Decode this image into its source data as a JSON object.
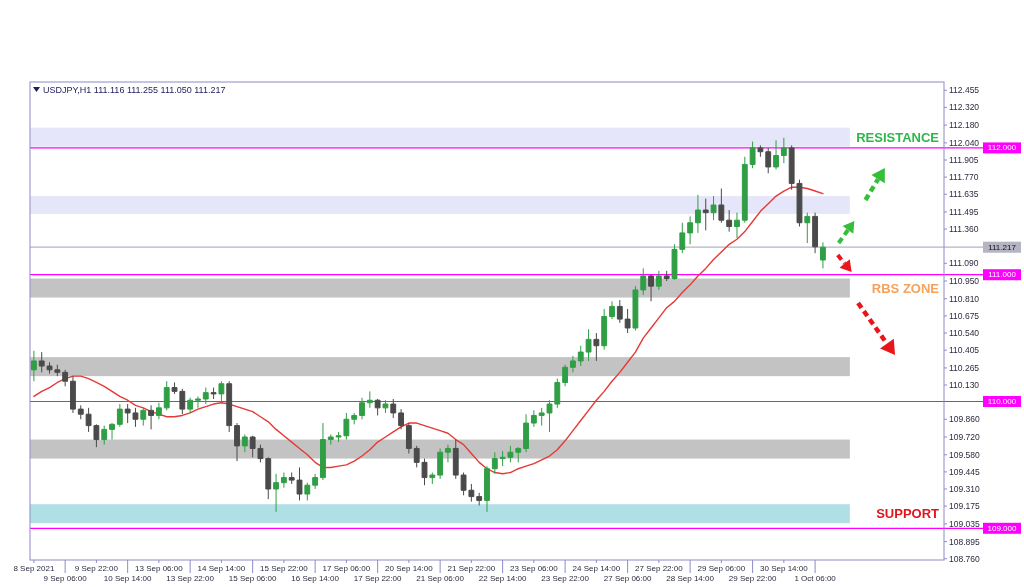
{
  "chart_data": {
    "type": "candlestick",
    "title": "USDJPY,H1 111.116 111.255 111.050 111.217",
    "categories": [
      "8 Sep 2021",
      null,
      null,
      null,
      "9 Sep 06:00",
      null,
      null,
      null,
      "9 Sep 22:00",
      null,
      null,
      null,
      "10 Sep 14:00",
      null,
      null,
      null,
      "13 Sep 06:00",
      null,
      null,
      null,
      "13 Sep 22:00",
      null,
      null,
      null,
      "14 Sep 14:00",
      null,
      null,
      null,
      "15 Sep 06:00",
      null,
      null,
      null,
      "15 Sep 22:00",
      null,
      null,
      null,
      "16 Sep 14:00",
      null,
      null,
      null,
      "17 Sep 06:00",
      null,
      null,
      null,
      "17 Sep 22:00",
      null,
      null,
      null,
      "20 Sep 14:00",
      null,
      null,
      null,
      "21 Sep 06:00",
      null,
      null,
      null,
      "21 Sep 22:00",
      null,
      null,
      null,
      "22 Sep 14:00",
      null,
      null,
      null,
      "23 Sep 06:00",
      null,
      null,
      null,
      "23 Sep 22:00",
      null,
      null,
      null,
      "24 Sep 14:00",
      null,
      null,
      null,
      "27 Sep 06:00",
      null,
      null,
      null,
      "27 Sep 22:00",
      null,
      null,
      null,
      "28 Sep 14:00",
      null,
      null,
      null,
      "29 Sep 06:00",
      null,
      null,
      null,
      "29 Sep 22:00",
      null,
      null,
      null,
      "30 Sep 14:00",
      null,
      null,
      null,
      "1 Oct 06:00",
      null,
      null,
      null,
      null,
      null,
      null,
      null,
      null,
      null,
      null,
      null,
      null,
      null,
      null,
      null,
      null
    ],
    "series": [
      {
        "type": "candlestick",
        "ohlc": [
          [
            110.25,
            110.4,
            110.16,
            110.32
          ],
          [
            110.32,
            110.39,
            110.23,
            110.28
          ],
          [
            110.28,
            110.31,
            110.22,
            110.25
          ],
          [
            110.25,
            110.29,
            110.2,
            110.23
          ],
          [
            110.23,
            110.25,
            110.12,
            110.16
          ],
          [
            110.16,
            110.2,
            109.91,
            109.94
          ],
          [
            109.94,
            109.97,
            109.86,
            109.9
          ],
          [
            109.9,
            109.95,
            109.76,
            109.81
          ],
          [
            109.81,
            109.82,
            109.64,
            109.7
          ],
          [
            109.7,
            109.81,
            109.66,
            109.78
          ],
          [
            109.78,
            109.83,
            109.7,
            109.82
          ],
          [
            109.82,
            109.98,
            109.8,
            109.94
          ],
          [
            109.94,
            109.98,
            109.83,
            109.91
          ],
          [
            109.91,
            109.95,
            109.8,
            109.86
          ],
          [
            109.86,
            109.95,
            109.81,
            109.93
          ],
          [
            109.93,
            109.97,
            109.78,
            109.89
          ],
          [
            109.89,
            109.99,
            109.86,
            109.95
          ],
          [
            109.95,
            110.16,
            109.93,
            110.11
          ],
          [
            110.11,
            110.15,
            110.06,
            110.08
          ],
          [
            110.08,
            110.1,
            109.9,
            109.94
          ],
          [
            109.94,
            110.03,
            109.91,
            110.01
          ],
          [
            110.01,
            110.04,
            109.95,
            110.02
          ],
          [
            110.02,
            110.11,
            109.98,
            110.07
          ],
          [
            110.07,
            110.11,
            110.02,
            110.06
          ],
          [
            110.06,
            110.16,
            109.99,
            110.14
          ],
          [
            110.14,
            110.16,
            109.76,
            109.81
          ],
          [
            109.81,
            109.83,
            109.53,
            109.65
          ],
          [
            109.65,
            109.74,
            109.6,
            109.72
          ],
          [
            109.72,
            109.73,
            109.56,
            109.63
          ],
          [
            109.63,
            109.66,
            109.52,
            109.55
          ],
          [
            109.55,
            109.56,
            109.23,
            109.31
          ],
          [
            109.31,
            109.43,
            109.13,
            109.36
          ],
          [
            109.36,
            109.44,
            109.32,
            109.4
          ],
          [
            109.4,
            109.44,
            109.35,
            109.38
          ],
          [
            109.38,
            109.48,
            109.22,
            109.27
          ],
          [
            109.27,
            109.36,
            109.22,
            109.34
          ],
          [
            109.34,
            109.43,
            109.31,
            109.4
          ],
          [
            109.4,
            109.83,
            109.38,
            109.7
          ],
          [
            109.7,
            109.74,
            109.66,
            109.72
          ],
          [
            109.72,
            109.76,
            109.68,
            109.73
          ],
          [
            109.73,
            109.91,
            109.7,
            109.86
          ],
          [
            109.86,
            109.91,
            109.82,
            109.89
          ],
          [
            109.89,
            110.03,
            109.86,
            109.99
          ],
          [
            109.99,
            110.08,
            109.95,
            110.01
          ],
          [
            110.01,
            110.02,
            109.89,
            109.95
          ],
          [
            109.95,
            110.01,
            109.91,
            109.98
          ],
          [
            109.98,
            110.02,
            109.87,
            109.91
          ],
          [
            109.91,
            109.94,
            109.78,
            109.81
          ],
          [
            109.81,
            109.83,
            109.59,
            109.63
          ],
          [
            109.63,
            109.65,
            109.48,
            109.52
          ],
          [
            109.52,
            109.55,
            109.34,
            109.4
          ],
          [
            109.4,
            109.44,
            109.35,
            109.42
          ],
          [
            109.42,
            109.63,
            109.39,
            109.6
          ],
          [
            109.6,
            109.66,
            109.52,
            109.63
          ],
          [
            109.63,
            109.7,
            109.39,
            109.42
          ],
          [
            109.42,
            109.44,
            109.26,
            109.3
          ],
          [
            109.3,
            109.35,
            109.21,
            109.25
          ],
          [
            109.25,
            109.28,
            109.18,
            109.22
          ],
          [
            109.22,
            109.49,
            109.13,
            109.47
          ],
          [
            109.47,
            109.6,
            109.43,
            109.55
          ],
          [
            109.55,
            109.61,
            109.49,
            109.56
          ],
          [
            109.56,
            109.65,
            109.52,
            109.6
          ],
          [
            109.6,
            109.64,
            109.52,
            109.63
          ],
          [
            109.63,
            109.9,
            109.6,
            109.83
          ],
          [
            109.83,
            109.93,
            109.8,
            109.89
          ],
          [
            109.89,
            109.95,
            109.81,
            109.91
          ],
          [
            109.91,
            110.01,
            109.76,
            109.98
          ],
          [
            109.98,
            110.18,
            109.95,
            110.15
          ],
          [
            110.15,
            110.29,
            110.12,
            110.27
          ],
          [
            110.27,
            110.36,
            110.23,
            110.32
          ],
          [
            110.32,
            110.44,
            110.28,
            110.39
          ],
          [
            110.39,
            110.57,
            110.32,
            110.49
          ],
          [
            110.49,
            110.54,
            110.32,
            110.44
          ],
          [
            110.44,
            110.73,
            110.41,
            110.67
          ],
          [
            110.67,
            110.79,
            110.65,
            110.75
          ],
          [
            110.75,
            110.8,
            110.62,
            110.65
          ],
          [
            110.65,
            110.73,
            110.54,
            110.58
          ],
          [
            110.58,
            110.91,
            110.56,
            110.88
          ],
          [
            110.88,
            111.05,
            110.84,
            110.99
          ],
          [
            110.99,
            111.0,
            110.79,
            110.91
          ],
          [
            110.91,
            111.03,
            110.88,
            110.99
          ],
          [
            110.99,
            111.03,
            110.95,
            110.97
          ],
          [
            110.97,
            111.24,
            110.96,
            111.2
          ],
          [
            111.2,
            111.41,
            111.17,
            111.33
          ],
          [
            111.33,
            111.46,
            111.24,
            111.41
          ],
          [
            111.41,
            111.63,
            111.33,
            111.51
          ],
          [
            111.51,
            111.6,
            111.35,
            111.49
          ],
          [
            111.49,
            111.62,
            111.43,
            111.55
          ],
          [
            111.55,
            111.68,
            111.41,
            111.43
          ],
          [
            111.43,
            111.51,
            111.34,
            111.38
          ],
          [
            111.38,
            111.49,
            111.29,
            111.43
          ],
          [
            111.43,
            111.93,
            111.41,
            111.87
          ],
          [
            111.87,
            112.05,
            111.84,
            112.0
          ],
          [
            112.0,
            112.02,
            111.93,
            111.97
          ],
          [
            111.97,
            112.0,
            111.8,
            111.85
          ],
          [
            111.85,
            112.06,
            111.83,
            111.94
          ],
          [
            111.94,
            112.08,
            111.88,
            112.0
          ],
          [
            112.0,
            112.02,
            111.67,
            111.72
          ],
          [
            111.72,
            111.75,
            111.38,
            111.41
          ],
          [
            111.41,
            111.49,
            111.25,
            111.46
          ],
          [
            111.46,
            111.49,
            111.17,
            111.22
          ],
          [
            111.116,
            111.255,
            111.05,
            111.217
          ],
          null,
          null,
          null,
          null,
          null,
          null,
          null,
          null,
          null,
          null,
          null,
          null,
          null,
          null,
          null
        ],
        "colors": [
          "#2f9e44",
          "#4a4a4a",
          "#4a4a4a",
          "#4a4a4a",
          "#4a4a4a",
          "#4a4a4a",
          "#4a4a4a",
          "#4a4a4a",
          "#4a4a4a",
          "#2f9e44",
          "#2f9e44",
          "#2f9e44",
          "#4a4a4a",
          "#4a4a4a",
          "#2f9e44",
          "#4a4a4a",
          "#2f9e44",
          "#2f9e44",
          "#4a4a4a",
          "#4a4a4a",
          "#2f9e44",
          "#2f9e44",
          "#2f9e44",
          "#4a4a4a",
          "#2f9e44",
          "#4a4a4a",
          "#4a4a4a",
          "#2f9e44",
          "#4a4a4a",
          "#4a4a4a",
          "#4a4a4a",
          "#2f9e44",
          "#2f9e44",
          "#4a4a4a",
          "#4a4a4a",
          "#2f9e44",
          "#2f9e44",
          "#2f9e44",
          "#2f9e44",
          "#2f9e44",
          "#2f9e44",
          "#2f9e44",
          "#2f9e44",
          "#2f9e44",
          "#4a4a4a",
          "#2f9e44",
          "#4a4a4a",
          "#4a4a4a",
          "#4a4a4a",
          "#4a4a4a",
          "#4a4a4a",
          "#2f9e44",
          "#2f9e44",
          "#2f9e44",
          "#4a4a4a",
          "#4a4a4a",
          "#4a4a4a",
          "#4a4a4a",
          "#2f9e44",
          "#2f9e44",
          "#2f9e44",
          "#2f9e44",
          "#2f9e44",
          "#2f9e44",
          "#2f9e44",
          "#2f9e44",
          "#2f9e44",
          "#2f9e44",
          "#2f9e44",
          "#2f9e44",
          "#2f9e44",
          "#2f9e44",
          "#4a4a4a",
          "#2f9e44",
          "#2f9e44",
          "#4a4a4a",
          "#4a4a4a",
          "#2f9e44",
          "#2f9e44",
          "#4a4a4a",
          "#2f9e44",
          "#4a4a4a",
          "#2f9e44",
          "#2f9e44",
          "#2f9e44",
          "#2f9e44",
          "#4a4a4a",
          "#2f9e44",
          "#4a4a4a",
          "#4a4a4a",
          "#2f9e44",
          "#2f9e44",
          "#2f9e44",
          "#4a4a4a",
          "#4a4a4a",
          "#2f9e44",
          "#2f9e44",
          "#4a4a4a",
          "#4a4a4a",
          "#2f9e44",
          "#4a4a4a",
          "#2f9e44",
          null,
          null,
          null,
          null,
          null,
          null,
          null,
          null,
          null,
          null,
          null,
          null,
          null,
          null,
          null
        ]
      },
      {
        "type": "line",
        "color": "#e53935",
        "values": [
          110.04,
          110.08,
          110.11,
          110.15,
          110.18,
          110.2,
          110.2,
          110.18,
          110.15,
          110.12,
          110.08,
          110.04,
          110.01,
          109.97,
          109.95,
          109.92,
          109.9,
          109.88,
          109.88,
          109.89,
          109.91,
          109.94,
          109.96,
          109.98,
          109.99,
          109.98,
          109.96,
          109.94,
          109.92,
          109.88,
          109.84,
          109.78,
          109.73,
          109.68,
          109.63,
          109.58,
          109.52,
          109.48,
          109.48,
          109.49,
          109.5,
          109.53,
          109.57,
          109.62,
          109.68,
          109.72,
          109.76,
          109.8,
          109.83,
          109.83,
          109.81,
          109.79,
          109.77,
          109.75,
          109.7,
          109.66,
          109.59,
          109.52,
          109.47,
          109.44,
          109.43,
          109.44,
          109.47,
          109.49,
          109.51,
          109.54,
          109.57,
          109.62,
          109.69,
          109.77,
          109.85,
          109.93,
          110.01,
          110.08,
          110.16,
          110.23,
          110.31,
          110.39,
          110.5,
          110.58,
          110.66,
          110.74,
          110.79,
          110.86,
          110.92,
          110.99,
          111.05,
          111.12,
          111.18,
          111.24,
          111.28,
          111.34,
          111.42,
          111.5,
          111.56,
          111.62,
          111.66,
          111.69,
          111.69,
          111.68,
          111.66,
          111.64,
          null,
          null,
          null,
          null,
          null,
          null,
          null,
          null,
          null,
          null,
          null,
          null,
          null,
          null,
          null
        ]
      }
    ],
    "ylim": [
      108.75,
      112.52
    ],
    "yticks": [
      {
        "value": 112.455,
        "label": "112.455"
      },
      {
        "value": 112.32,
        "label": "112.320"
      },
      {
        "value": 112.18,
        "label": "112.180"
      },
      {
        "value": 112.04,
        "label": "112.040"
      },
      {
        "value": 111.905,
        "label": "111.905"
      },
      {
        "value": 111.77,
        "label": "111.770"
      },
      {
        "value": 111.635,
        "label": "111.635"
      },
      {
        "value": 111.495,
        "label": "111.495"
      },
      {
        "value": 111.36,
        "label": "111.360"
      },
      {
        "value": 111.09,
        "label": "111.090"
      },
      {
        "value": 110.95,
        "label": "110.950"
      },
      {
        "value": 110.81,
        "label": "110.810"
      },
      {
        "value": 110.675,
        "label": "110.675"
      },
      {
        "value": 110.54,
        "label": "110.540"
      },
      {
        "value": 110.405,
        "label": "110.405"
      },
      {
        "value": 110.265,
        "label": "110.265"
      },
      {
        "value": 110.13,
        "label": "110.130"
      },
      {
        "value": 109.86,
        "label": "109.860"
      },
      {
        "value": 109.72,
        "label": "109.720"
      },
      {
        "value": 109.58,
        "label": "109.580"
      },
      {
        "value": 109.445,
        "label": "109.445"
      },
      {
        "value": 109.31,
        "label": "109.310"
      },
      {
        "value": 109.175,
        "label": "109.175"
      },
      {
        "value": 109.035,
        "label": "109.035"
      },
      {
        "value": 108.895,
        "label": "108.895"
      },
      {
        "value": 108.76,
        "label": "108.760"
      }
    ],
    "ref_lines": [
      {
        "axis": "y",
        "value": 112,
        "label": "112.000",
        "color": "#ff00ff"
      },
      {
        "axis": "y",
        "value": 111.217,
        "label": "111.217",
        "color": "#b4b4c3"
      },
      {
        "axis": "y",
        "value": 111,
        "label": "111.000",
        "color": "#ff00ff"
      },
      {
        "axis": "y",
        "value": 110,
        "label": "110.000",
        "color": "#ff00ff"
      },
      {
        "axis": "y",
        "value": 109,
        "label": "109.000",
        "color": "#ff00ff"
      }
    ],
    "bands": [
      {
        "axis": "y",
        "from": 112.01,
        "to": 112.16,
        "label": "RESISTANCE",
        "color": "#e6e6fa"
      },
      {
        "axis": "y",
        "from": 111.48,
        "to": 111.62,
        "color": "#e6e6fa"
      },
      {
        "axis": "y",
        "from": 110.82,
        "to": 110.97,
        "label": "RBS ZONE",
        "color": "#c3c3c3"
      },
      {
        "axis": "y",
        "from": 110.2,
        "to": 110.35,
        "color": "#c3c3c3"
      },
      {
        "axis": "y",
        "from": 109.55,
        "to": 109.7,
        "color": "#c3c3c3"
      },
      {
        "axis": "y",
        "from": 109.04,
        "to": 109.19,
        "label": "SUPPORT",
        "color": "#b0e0e6"
      }
    ]
  }
}
